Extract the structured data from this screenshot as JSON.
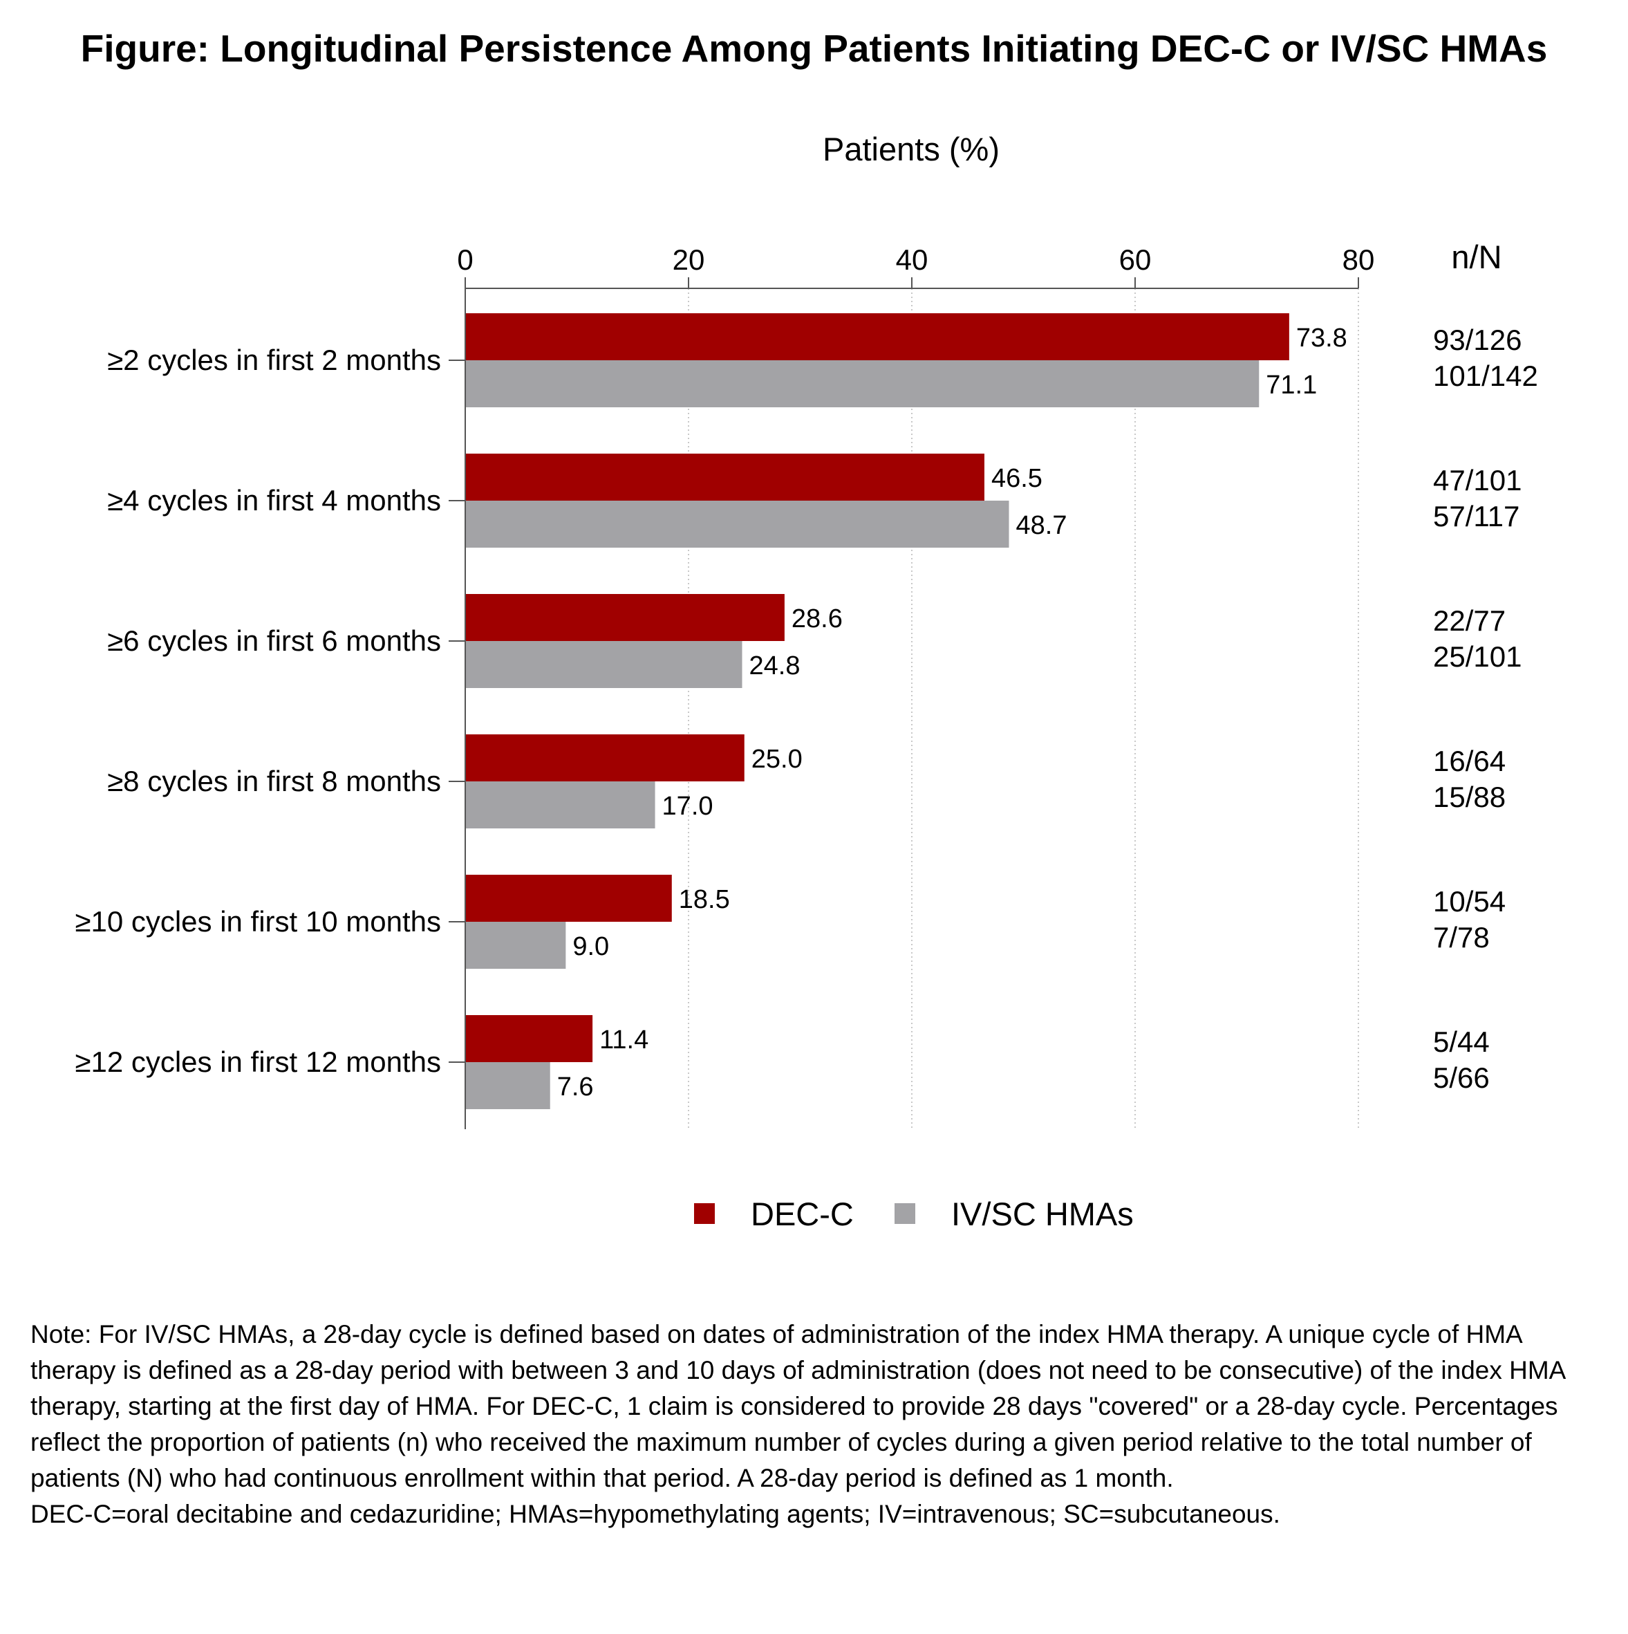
{
  "title": "Figure: Longitudinal Persistence Among Patients Initiating DEC-C or IV/SC HMAs",
  "chart_data": {
    "type": "bar",
    "orientation": "horizontal",
    "title": "Figure: Longitudinal Persistence Among Patients Initiating DEC-C or IV/SC HMAs",
    "xlabel": "Patients (%)",
    "ylabel": "",
    "xlim": [
      0,
      80
    ],
    "xticks": [
      0,
      20,
      40,
      60,
      80
    ],
    "grid": "vertical dotted",
    "legend_position": "bottom-center",
    "right_column_header": "n/N",
    "categories": [
      "≥2 cycles in first 2 months",
      "≥4 cycles in first 4 months",
      "≥6 cycles in first 6 months",
      "≥8 cycles in first 8 months",
      "≥10 cycles in first 10 months",
      "≥12 cycles in first 12 months"
    ],
    "series": [
      {
        "name": "DEC-C",
        "color": "#a00000",
        "values": [
          73.8,
          46.5,
          28.6,
          25.0,
          18.5,
          11.4
        ],
        "labels": [
          "73.8",
          "46.5",
          "28.6",
          "25.0",
          "18.5",
          "11.4"
        ],
        "nN": [
          "93/126",
          "47/101",
          "22/77",
          "16/64",
          "10/54",
          "5/44"
        ]
      },
      {
        "name": "IV/SC HMAs",
        "color": "#a3a3a6",
        "values": [
          71.1,
          48.7,
          24.8,
          17.0,
          9.0,
          7.6
        ],
        "labels": [
          "71.1",
          "48.7",
          "24.8",
          "17.0",
          "9.0",
          "7.6"
        ],
        "nN": [
          "101/142",
          "57/117",
          "25/101",
          "15/88",
          "7/78",
          "5/66"
        ]
      }
    ]
  },
  "note": {
    "paragraph1": "Note: For IV/SC HMAs, a 28-day cycle is defined based on dates of administration of the index HMA therapy. A unique cycle of HMA therapy is defined as a 28-day period with between 3 and 10 days of administration (does not need to be consecutive) of the index HMA therapy, starting at the first day of HMA. For DEC-C, 1 claim is considered to provide 28 days \"covered\" or a 28-day cycle. Percentages reflect the proportion of patients (n) who received the maximum number of cycles during a given period relative to the total number of patients (N) who had continuous enrollment within that period. A 28-day period is defined as 1 month.",
    "paragraph2": "DEC-C=oral decitabine and cedazuridine; HMAs=hypomethylating agents; IV=intravenous; SC=subcutaneous."
  }
}
